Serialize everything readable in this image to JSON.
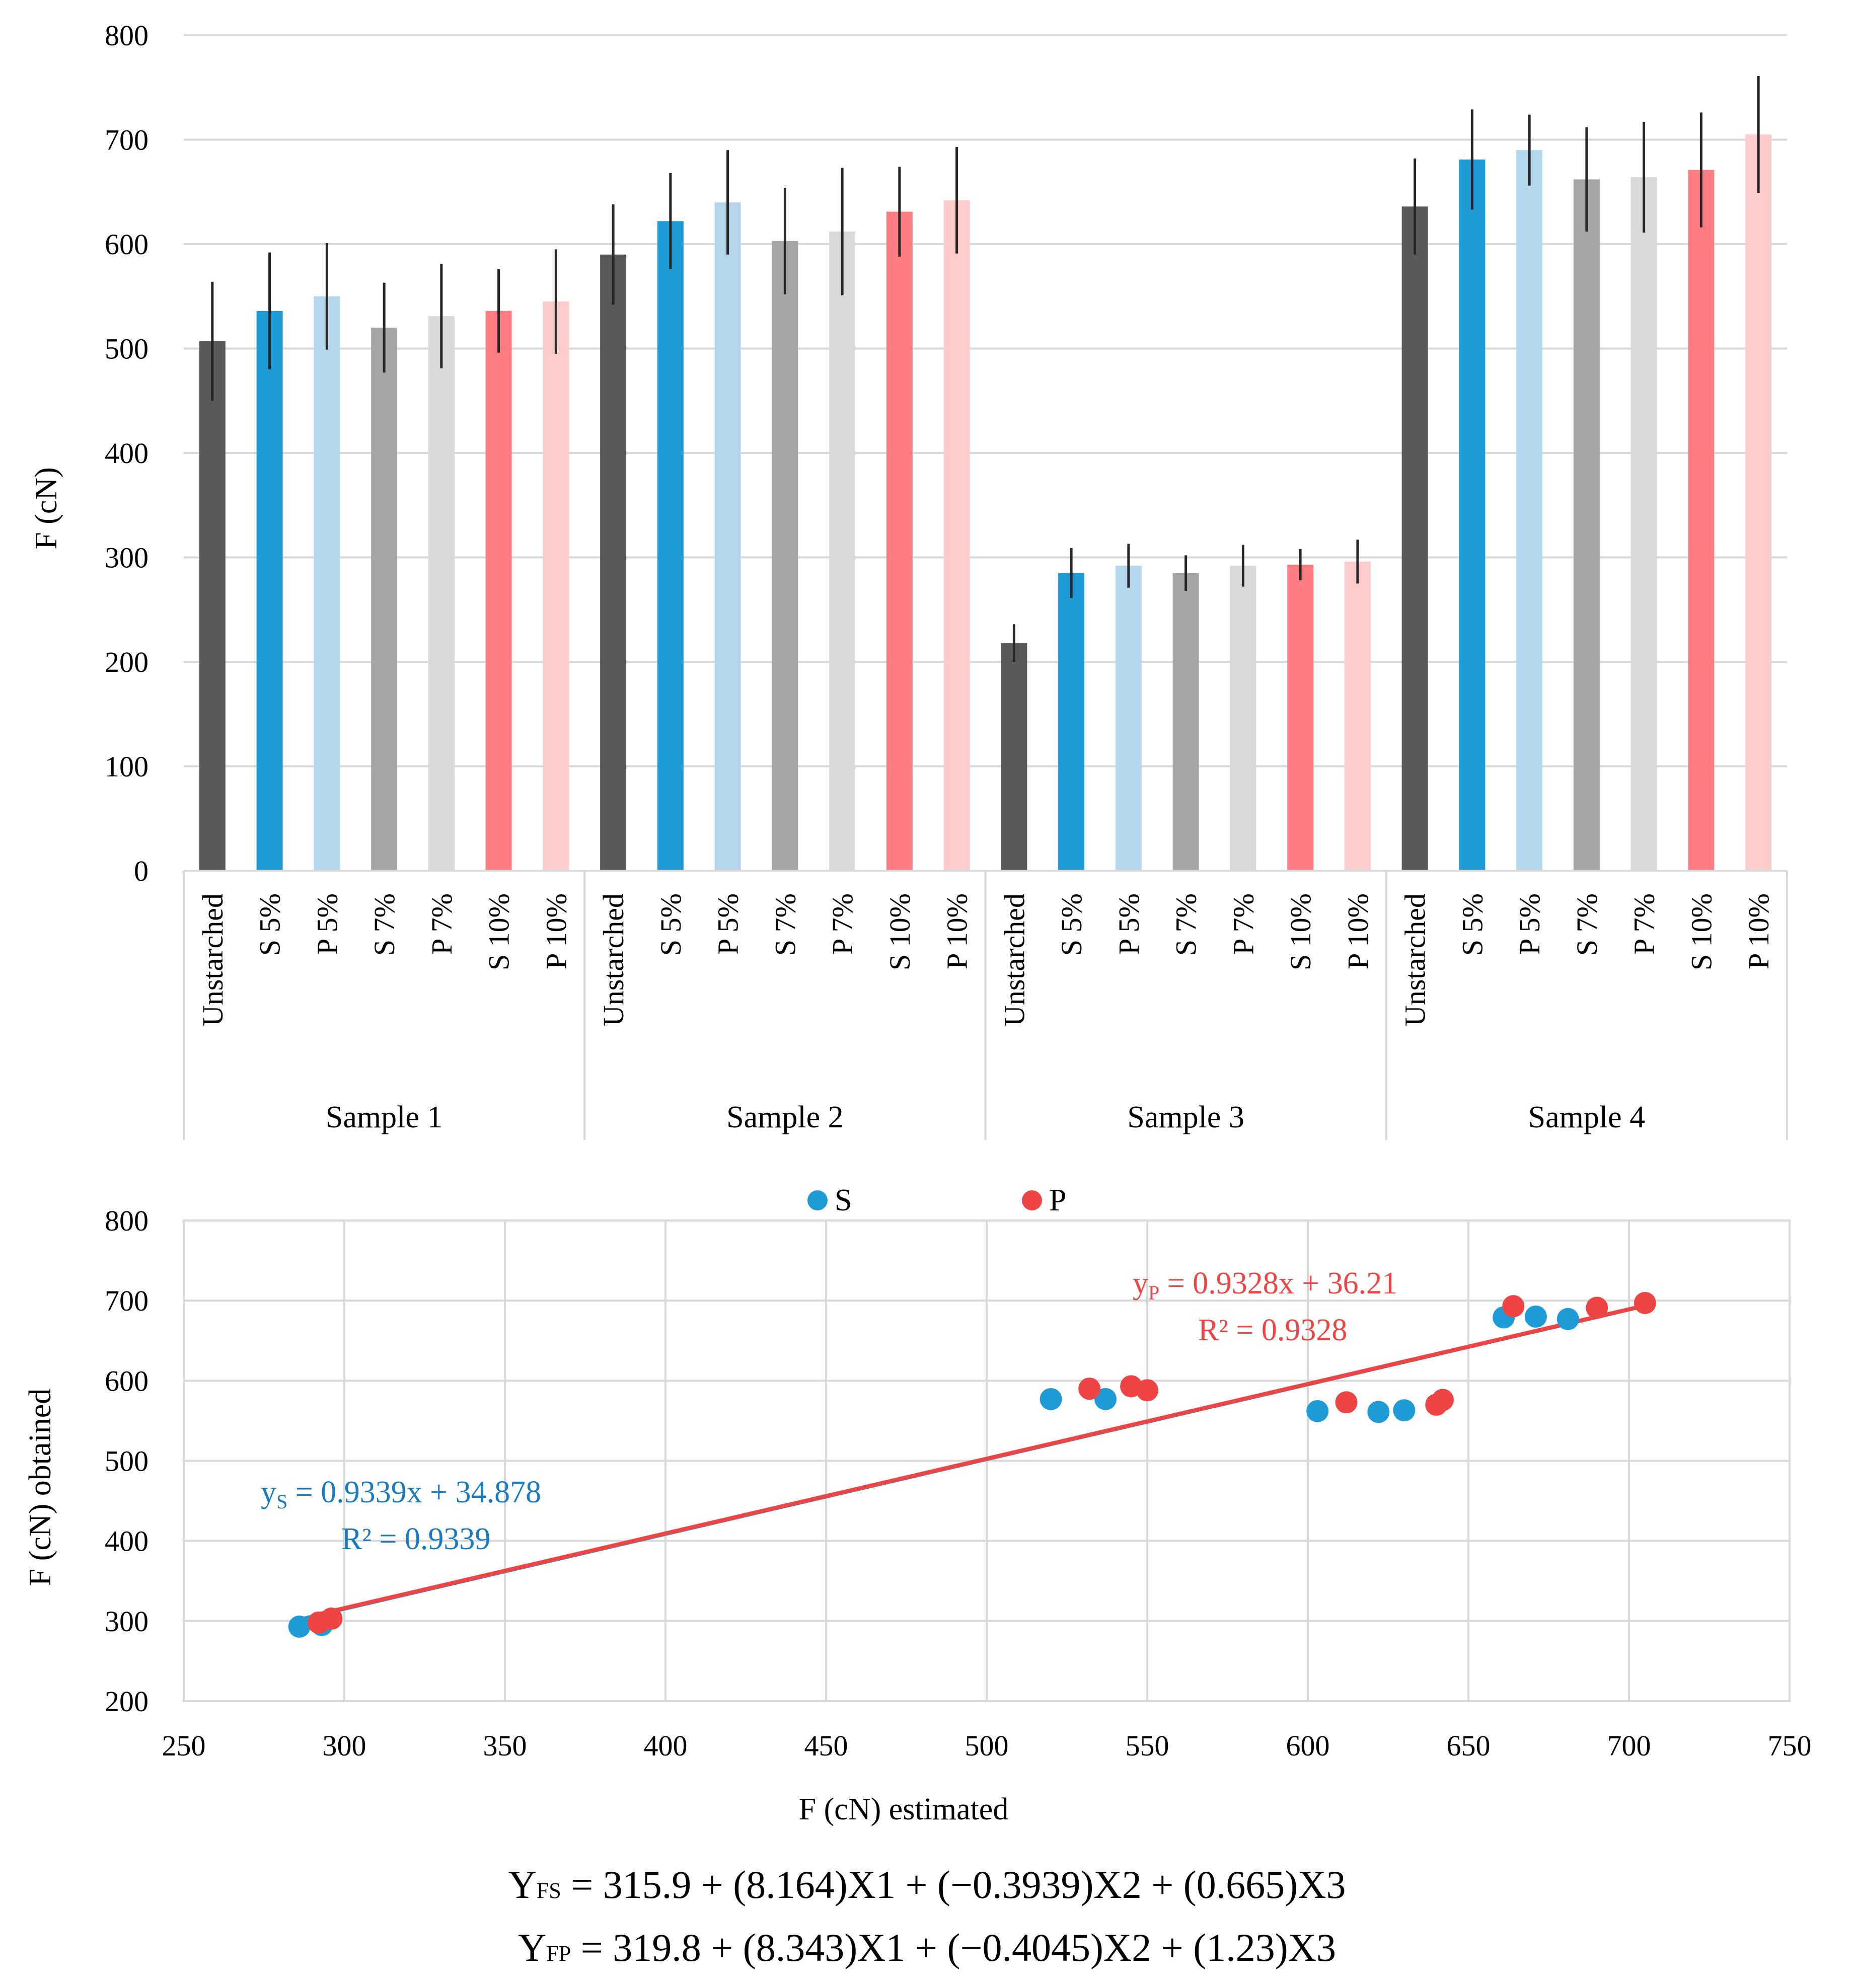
{
  "bar_chart": {
    "ylabel": "F (cN)",
    "yticks": [
      0,
      100,
      200,
      300,
      400,
      500,
      600,
      700,
      800
    ],
    "groups": [
      "Sample 1",
      "Sample 2",
      "Sample 3",
      "Sample 4"
    ],
    "categories": [
      "Unstarched",
      "S 5%",
      "P 5%",
      "S 7%",
      "P 7%",
      "S 10%",
      "P 10%"
    ]
  },
  "scatter_chart": {
    "xlabel": "F (cN) estimated",
    "ylabel": "F (cN) obtained",
    "xticks": [
      250,
      300,
      350,
      400,
      450,
      500,
      550,
      600,
      650,
      700,
      750
    ],
    "yticks": [
      200,
      300,
      400,
      500,
      600,
      700,
      800
    ],
    "legend": [
      {
        "name": "S",
        "color": "#1F9BD7"
      },
      {
        "name": "P",
        "color": "#EE4444"
      }
    ],
    "trend_s": {
      "y_prefix": "y",
      "subscript": "S",
      "equation": " = 0.9339x + 34.878",
      "r2": "R² = 0.9339",
      "color": "#1B7BC0"
    },
    "trend_p": {
      "y_prefix": "y",
      "subscript": "P",
      "equation": " = 0.9328x + 36.21",
      "r2": "R² = 0.9328",
      "color": "#EE4444"
    }
  },
  "equations": [
    {
      "y": "Y",
      "sub": "FS",
      "rhs": " = 315.9 + (8.164)X1 + (−0.3939)X2 + (0.665)X3"
    },
    {
      "y": "Y",
      "sub": "FP",
      "rhs": " = 319.8 + (8.343)X1 + (−0.4045)X2 + (1.23)X3"
    }
  ],
  "chart_data": [
    {
      "type": "bar",
      "title": "",
      "ylabel": "F (cN)",
      "ylim": [
        0,
        800
      ],
      "groups": [
        "Sample 1",
        "Sample 2",
        "Sample 3",
        "Sample 4"
      ],
      "categories": [
        "Unstarched",
        "S 5%",
        "P 5%",
        "S 7%",
        "P 7%",
        "S 10%",
        "P 10%"
      ],
      "colors": [
        "#595959",
        "#1F9BD7",
        "#B5D7EE",
        "#A6A6A6",
        "#D9D9D9",
        "#FF7C80",
        "#FFCCCC"
      ],
      "values": [
        [
          507,
          536,
          550,
          520,
          531,
          536,
          545
        ],
        [
          590,
          622,
          640,
          603,
          612,
          631,
          642
        ],
        [
          218,
          285,
          292,
          285,
          292,
          293,
          296
        ],
        [
          636,
          681,
          690,
          662,
          664,
          671,
          705
        ]
      ],
      "error": [
        [
          57,
          56,
          51,
          43,
          50,
          40,
          50
        ],
        [
          48,
          46,
          50,
          51,
          61,
          43,
          51
        ],
        [
          18,
          24,
          21,
          17,
          20,
          15,
          21
        ],
        [
          46,
          48,
          34,
          50,
          53,
          55,
          56
        ]
      ]
    },
    {
      "type": "scatter",
      "title": "",
      "xlabel": "F (cN) estimated",
      "ylabel": "F (cN) obtained",
      "xlim": [
        250,
        750
      ],
      "ylim": [
        200,
        800
      ],
      "series": [
        {
          "name": "S",
          "color": "#1F9BD7",
          "points": [
            [
              286,
              293
            ],
            [
              293,
              295
            ],
            [
              520,
              577
            ],
            [
              537,
              577
            ],
            [
              603,
              562
            ],
            [
              622,
              561
            ],
            [
              630,
              563
            ],
            [
              661,
              679
            ],
            [
              671,
              680
            ],
            [
              681,
              677
            ]
          ]
        },
        {
          "name": "P",
          "color": "#EE4444",
          "points": [
            [
              292,
              298
            ],
            [
              296,
              303
            ],
            [
              532,
              590
            ],
            [
              545,
              593
            ],
            [
              550,
              588
            ],
            [
              612,
              573
            ],
            [
              640,
              570
            ],
            [
              642,
              576
            ],
            [
              664,
              693
            ],
            [
              690,
              691
            ],
            [
              705,
              697
            ]
          ]
        }
      ],
      "trendlines": [
        {
          "series": "S",
          "slope": 0.9339,
          "intercept": 34.878,
          "x_range": [
            286,
            705
          ]
        },
        {
          "series": "P",
          "slope": 0.9328,
          "intercept": 36.21,
          "x_range": [
            292,
            705
          ]
        }
      ]
    }
  ]
}
